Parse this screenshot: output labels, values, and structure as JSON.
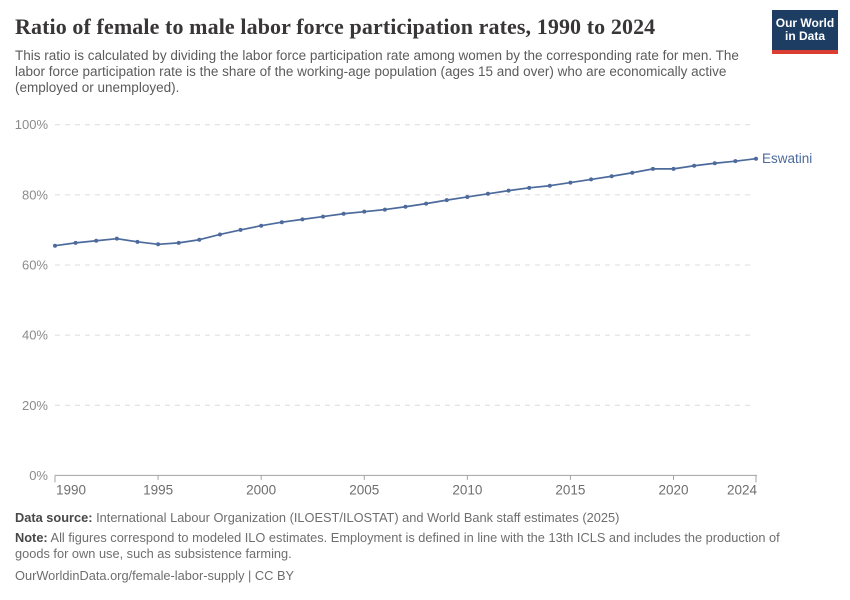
{
  "header": {
    "title": "Ratio of female to male labor force participation rates, 1990 to 2024",
    "subtitle": "This ratio is calculated by dividing the labor force participation rate among women by the corresponding rate for men. The labor force participation rate is the share of the working-age population (ages 15 and over) who are economically active (employed or unemployed).",
    "logo_line1": "Our World",
    "logo_line2": "in Data"
  },
  "chart_data": {
    "type": "line",
    "title": "Ratio of female to male labor force participation rates, 1990 to 2024",
    "entity_label": "Eswatini",
    "x": [
      1990,
      1991,
      1992,
      1993,
      1994,
      1995,
      1996,
      1997,
      1998,
      1999,
      2000,
      2001,
      2002,
      2003,
      2004,
      2005,
      2006,
      2007,
      2008,
      2009,
      2010,
      2011,
      2012,
      2013,
      2014,
      2015,
      2016,
      2017,
      2018,
      2019,
      2020,
      2021,
      2022,
      2023,
      2024
    ],
    "series": [
      {
        "name": "Eswatini",
        "values": [
          65.5,
          66.3,
          66.9,
          67.5,
          66.6,
          65.9,
          66.3,
          67.2,
          68.7,
          70.0,
          71.2,
          72.2,
          73.0,
          73.8,
          74.6,
          75.2,
          75.8,
          76.6,
          77.5,
          78.5,
          79.4,
          80.3,
          81.2,
          82.0,
          82.6,
          83.5,
          84.4,
          85.3,
          86.3,
          87.4,
          87.4,
          88.3,
          89.0,
          89.6,
          90.3
        ]
      }
    ],
    "xlabel": "",
    "ylabel": "",
    "xlim": [
      1990,
      2024
    ],
    "ylim": [
      0,
      100
    ],
    "yticks": [
      0,
      20,
      40,
      60,
      80,
      100
    ],
    "ytick_suffix": "%",
    "xticks": [
      1990,
      1995,
      2000,
      2005,
      2010,
      2015,
      2020,
      2024
    ],
    "grid": "dashed-horizontal",
    "legend_position": "end-of-line-label",
    "line_color": "#4C6A9C",
    "gridline_color": "#dcdcdc",
    "axis_color": "#a3a3a3",
    "ytick_label_color": "#8b8b8b",
    "xtick_label_color": "#6e6e6e"
  },
  "footer": {
    "datasource_label": "Data source:",
    "datasource_text": " International Labour Organization (ILOEST/ILOSTAT) and World Bank staff estimates (2025)",
    "note_label": "Note:",
    "note_text": " All figures correspond to modeled ILO estimates. Employment is defined in line with the 13th ICLS and includes the production of goods for own use, such as subsistence farming.",
    "link_text": "OurWorldinData.org/female-labor-supply | CC BY"
  }
}
